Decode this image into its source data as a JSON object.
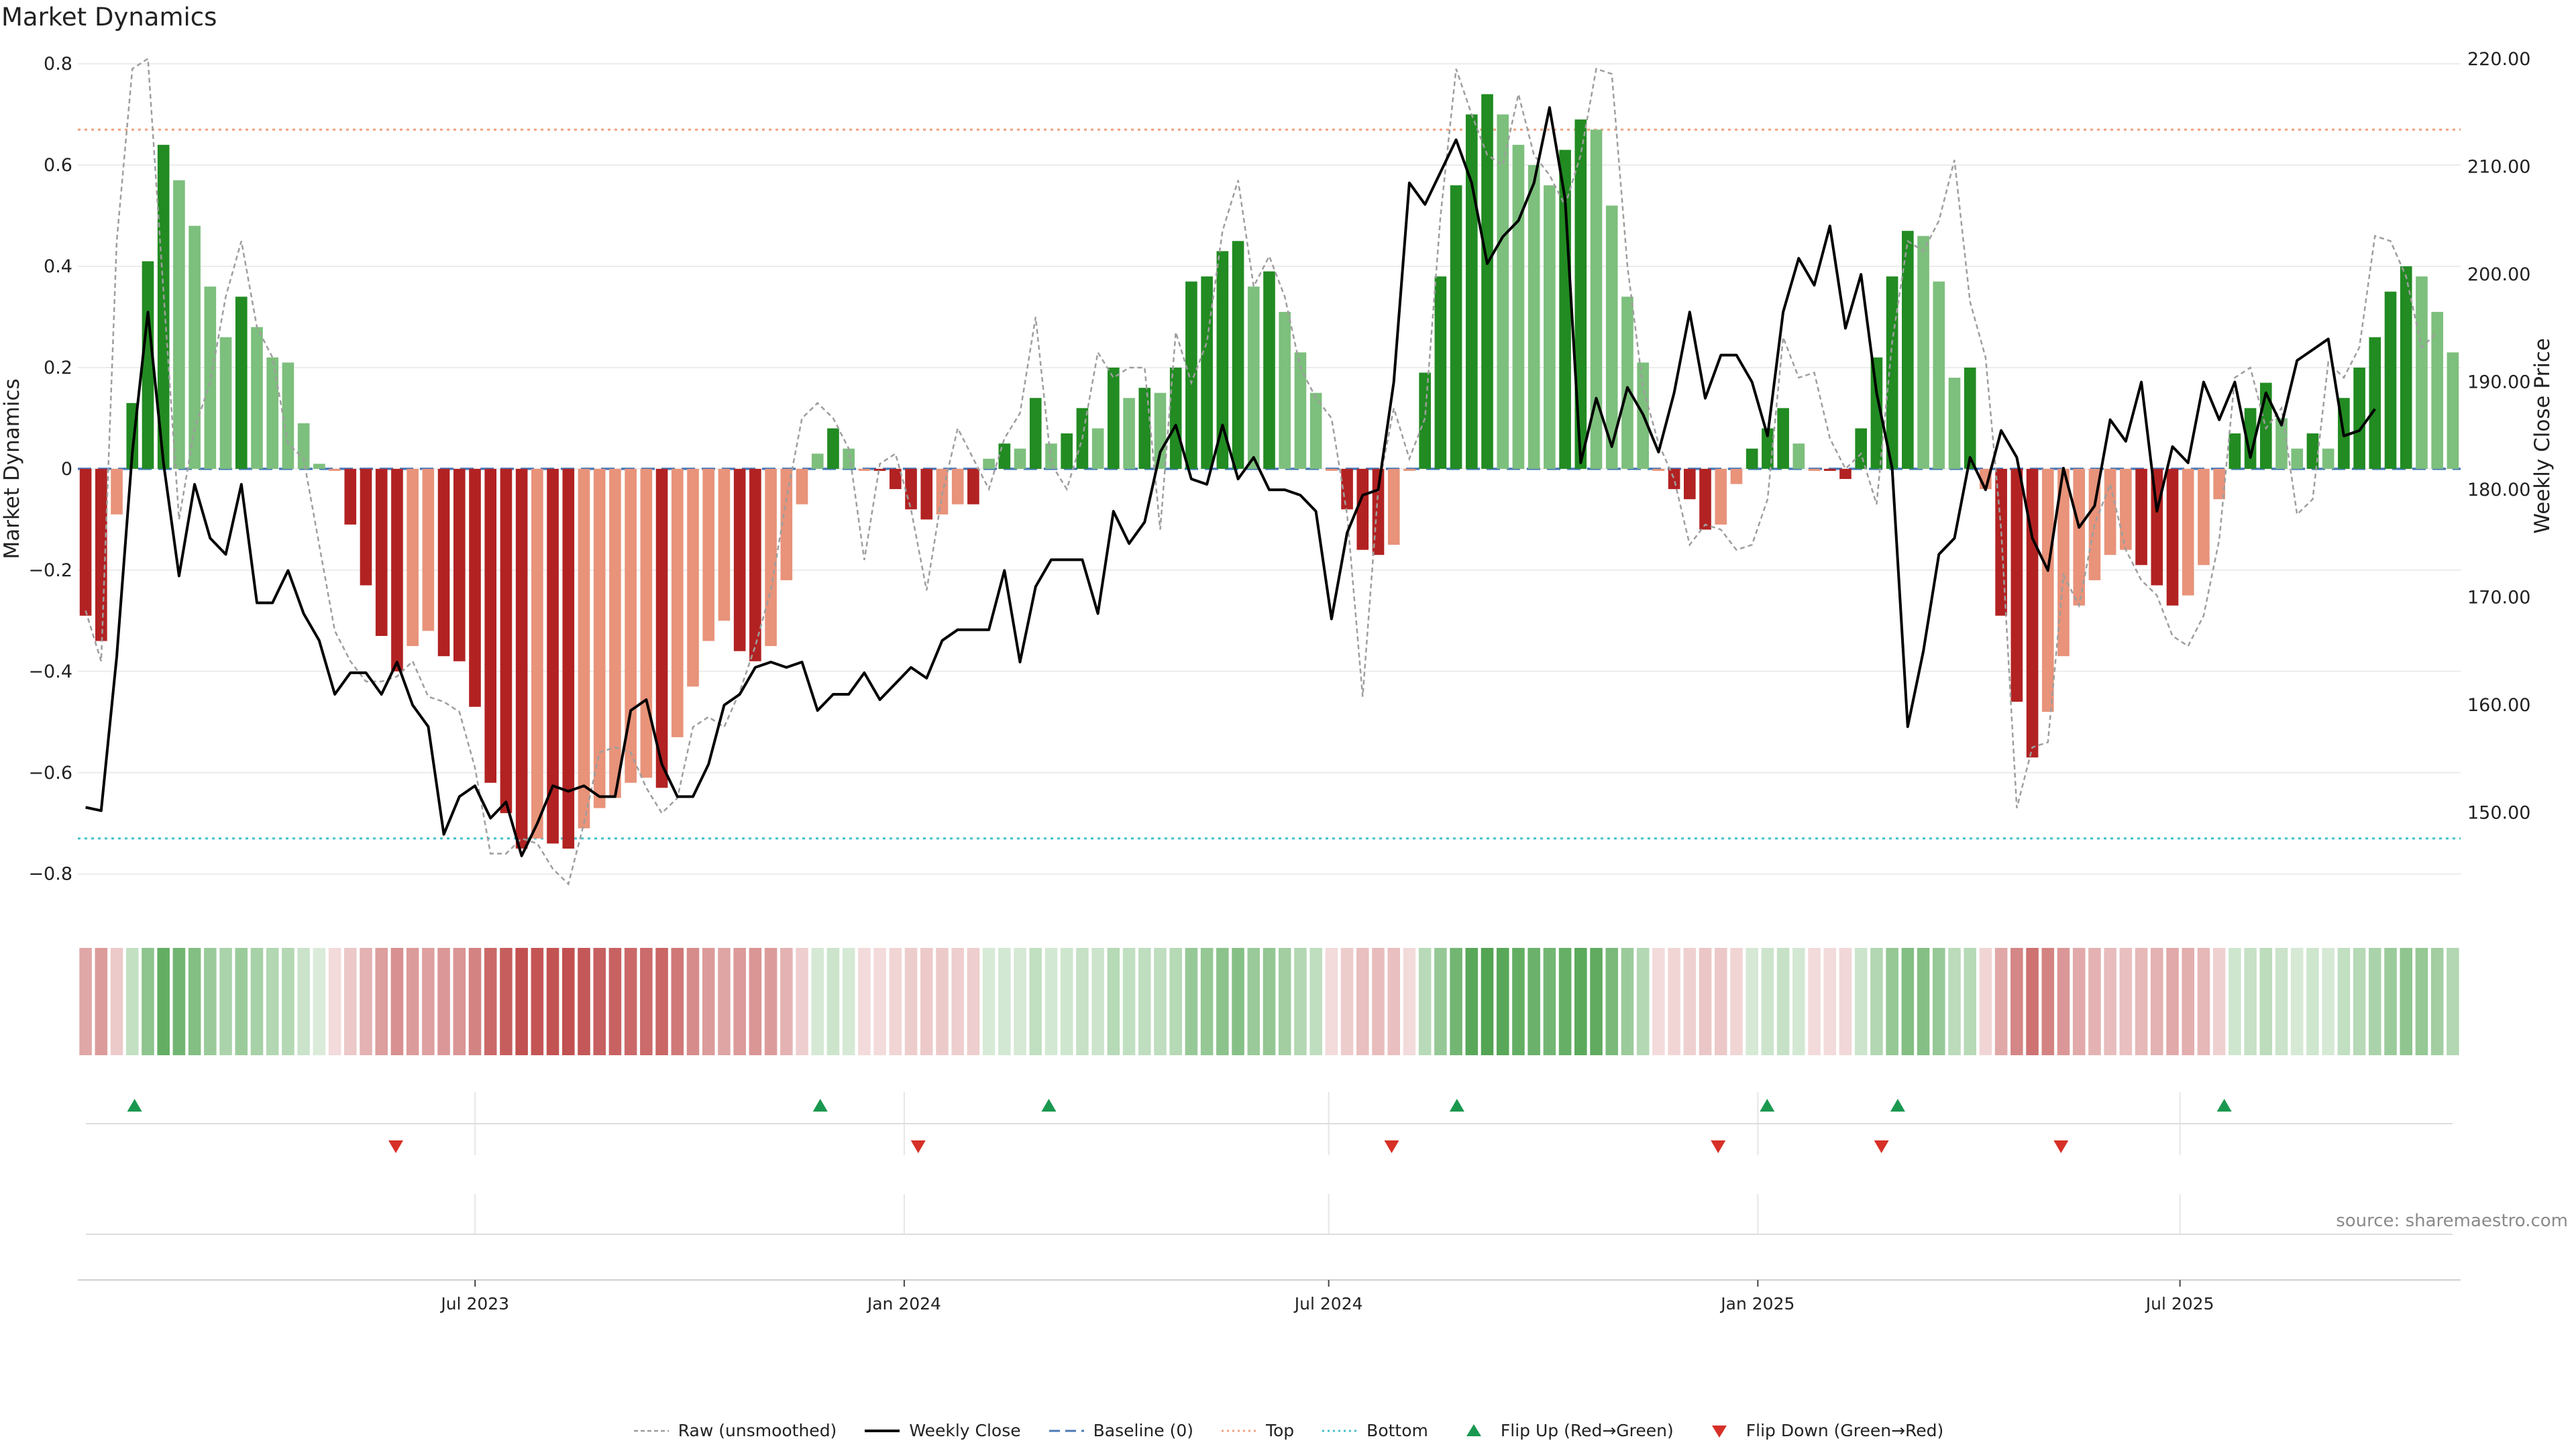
{
  "title": "Market Dynamics",
  "source_text": "source: sharemaestro.com",
  "colors": {
    "strong_green": "#228b22",
    "light_green": "#7dbf7d",
    "strong_red": "#b22222",
    "light_red": "#e8937a",
    "close_line": "#000000",
    "raw_line": "#9e9e9e",
    "baseline": "#4a7ab7",
    "top_line": "#f0a07d",
    "bottom_line": "#40c0c8",
    "flip_up": "#1a9850",
    "flip_down": "#d73027"
  },
  "legend": [
    {
      "label": "Raw (unsmoothed)",
      "kind": "raw"
    },
    {
      "label": "Weekly Close",
      "kind": "close"
    },
    {
      "label": "Baseline (0)",
      "kind": "baseline"
    },
    {
      "label": "Top",
      "kind": "top"
    },
    {
      "label": "Bottom",
      "kind": "bottom"
    },
    {
      "label": "Flip Up (Red→Green)",
      "kind": "up"
    },
    {
      "label": "Flip Down (Green→Red)",
      "kind": "down"
    }
  ],
  "chart_data": {
    "type": "bar",
    "title": "Market Dynamics",
    "ylabel": "Market Dynamics",
    "y2label": "Weekly Close Price",
    "ylim": [
      -0.86,
      0.82
    ],
    "y2lim": [
      141.5,
      220.5
    ],
    "yticks": [
      -0.8,
      -0.6,
      -0.4,
      -0.2,
      0,
      0.2,
      0.4,
      0.6,
      0.8
    ],
    "yticklabels": [
      "−0.8",
      "−0.6",
      "−0.4",
      "−0.2",
      "0",
      "0.2",
      "0.4",
      "0.6",
      "0.8"
    ],
    "y2ticks": [
      150,
      160,
      170,
      180,
      190,
      200,
      210,
      220
    ],
    "y2ticklabels": [
      "150.00",
      "160.00",
      "170.00",
      "180.00",
      "190.00",
      "200.00",
      "210.00",
      "220.00"
    ],
    "x_start": "2023-01-15",
    "x_end": "2025-10-26",
    "xticks": [
      "2023-07-01",
      "2024-01-01",
      "2024-07-01",
      "2025-01-01",
      "2025-07-01"
    ],
    "xticklabels": [
      "Jul 2023",
      "Jan 2024",
      "Jul 2024",
      "Jan 2025",
      "Jul 2025"
    ],
    "top_level": 0.67,
    "bottom_level": -0.73,
    "baseline": 0,
    "grid": true,
    "legend_position": "bottom-center",
    "dynamics": [
      -0.29,
      -0.34,
      -0.09,
      0.13,
      0.41,
      0.64,
      0.57,
      0.48,
      0.36,
      0.26,
      0.34,
      0.28,
      0.22,
      0.21,
      0.09,
      0.01,
      -0.004,
      -0.11,
      -0.23,
      -0.33,
      -0.4,
      -0.35,
      -0.32,
      -0.37,
      -0.38,
      -0.47,
      -0.62,
      -0.68,
      -0.75,
      -0.73,
      -0.74,
      -0.75,
      -0.71,
      -0.67,
      -0.65,
      -0.62,
      -0.61,
      -0.63,
      -0.53,
      -0.43,
      -0.34,
      -0.3,
      -0.36,
      -0.38,
      -0.35,
      -0.22,
      -0.07,
      0.03,
      0.08,
      0.04,
      -0.004,
      -0.004,
      -0.04,
      -0.08,
      -0.1,
      -0.09,
      -0.07,
      -0.07,
      0.02,
      0.05,
      0.04,
      0.14,
      0.05,
      0.07,
      0.12,
      0.08,
      0.2,
      0.14,
      0.16,
      0.15,
      0.2,
      0.37,
      0.38,
      0.43,
      0.45,
      0.36,
      0.39,
      0.31,
      0.23,
      0.15,
      -0.004,
      -0.08,
      -0.16,
      -0.17,
      -0.15,
      -0.004,
      0.19,
      0.38,
      0.56,
      0.7,
      0.74,
      0.7,
      0.64,
      0.6,
      0.56,
      0.63,
      0.69,
      0.67,
      0.52,
      0.34,
      0.21,
      -0.004,
      -0.04,
      -0.06,
      -0.12,
      -0.11,
      -0.03,
      0.04,
      0.08,
      0.12,
      0.05,
      -0.004,
      -0.004,
      -0.02,
      0.08,
      0.22,
      0.38,
      0.47,
      0.46,
      0.37,
      0.18,
      0.2,
      -0.04,
      -0.29,
      -0.46,
      -0.57,
      -0.48,
      -0.37,
      -0.27,
      -0.22,
      -0.17,
      -0.16,
      -0.19,
      -0.23,
      -0.27,
      -0.25,
      -0.19,
      -0.06,
      0.07,
      0.12,
      0.17,
      0.1,
      0.04,
      0.07,
      0.04,
      0.14,
      0.2,
      0.26,
      0.35,
      0.4,
      0.38,
      0.31,
      0.23
    ],
    "raw": [
      -0.28,
      -0.38,
      0.45,
      0.79,
      0.81,
      0.35,
      -0.1,
      0.08,
      0.17,
      0.34,
      0.45,
      0.28,
      0.22,
      0.05,
      0.02,
      -0.15,
      -0.32,
      -0.38,
      -0.42,
      -0.42,
      -0.41,
      -0.38,
      -0.45,
      -0.46,
      -0.48,
      -0.59,
      -0.76,
      -0.76,
      -0.73,
      -0.74,
      -0.79,
      -0.82,
      -0.7,
      -0.56,
      -0.55,
      -0.56,
      -0.63,
      -0.68,
      -0.65,
      -0.51,
      -0.49,
      -0.51,
      -0.44,
      -0.35,
      -0.24,
      -0.06,
      0.1,
      0.13,
      0.1,
      0.04,
      -0.18,
      0.01,
      0.03,
      -0.08,
      -0.24,
      -0.05,
      0.08,
      0.02,
      -0.04,
      0.06,
      0.11,
      0.3,
      0.01,
      -0.04,
      0.06,
      0.23,
      0.18,
      0.2,
      0.2,
      -0.12,
      0.27,
      0.17,
      0.25,
      0.47,
      0.57,
      0.36,
      0.42,
      0.34,
      0.2,
      0.14,
      0.1,
      -0.09,
      -0.45,
      -0.04,
      0.12,
      0.02,
      0.1,
      0.5,
      0.79,
      0.7,
      0.62,
      0.6,
      0.74,
      0.62,
      0.58,
      0.52,
      0.62,
      0.79,
      0.78,
      0.4,
      0.16,
      0.05,
      -0.02,
      -0.15,
      -0.11,
      -0.12,
      -0.16,
      -0.15,
      -0.06,
      0.26,
      0.18,
      0.19,
      0.06,
      0.0,
      0.03,
      -0.07,
      0.25,
      0.45,
      0.43,
      0.49,
      0.61,
      0.33,
      0.22,
      -0.12,
      -0.67,
      -0.55,
      -0.54,
      -0.21,
      -0.27,
      -0.11,
      -0.03,
      -0.16,
      -0.22,
      -0.25,
      -0.33,
      -0.35,
      -0.29,
      -0.14,
      0.18,
      0.2,
      0.08,
      0.12,
      -0.09,
      -0.06,
      0.21,
      0.18,
      0.24,
      0.46,
      0.45,
      0.38,
      0.24,
      0.27
    ],
    "close": [
      150.5,
      150.2,
      164.5,
      183.5,
      196.5,
      182.5,
      172.0,
      180.5,
      175.5,
      174.0,
      180.5,
      169.5,
      169.5,
      172.5,
      168.5,
      166.0,
      161.0,
      163.0,
      163.0,
      161.0,
      164.0,
      160.0,
      158.0,
      148.0,
      151.5,
      152.5,
      149.5,
      151.0,
      146.0,
      149.0,
      152.5,
      152.0,
      152.5,
      151.5,
      151.5,
      159.5,
      160.5,
      154.5,
      151.5,
      151.5,
      154.5,
      160.0,
      161.0,
      163.5,
      164.0,
      163.5,
      164.0,
      159.5,
      161.0,
      161.0,
      163.0,
      160.5,
      162.0,
      163.5,
      162.5,
      166.0,
      167.0,
      167.0,
      167.0,
      172.5,
      164.0,
      171.0,
      173.5,
      173.5,
      173.5,
      168.5,
      178.0,
      175.0,
      177.0,
      183.5,
      186.0,
      181.0,
      180.5,
      186.0,
      181.0,
      183.0,
      180.0,
      180.0,
      179.5,
      178.0,
      168.0,
      176.0,
      179.5,
      180.0,
      190.0,
      208.5,
      206.5,
      209.5,
      212.5,
      208.5,
      201.0,
      203.5,
      205.0,
      208.5,
      215.5,
      207.0,
      182.5,
      188.5,
      184.0,
      189.5,
      187.0,
      183.5,
      189.0,
      196.5,
      188.5,
      192.5,
      192.5,
      190.0,
      185.0,
      196.5,
      201.5,
      199.0,
      204.5,
      195.0,
      200.0,
      189.0,
      182.0,
      158.0,
      165.0,
      174.0,
      175.5,
      183.0,
      180.0,
      185.5,
      183.0,
      175.5,
      172.5,
      182.0,
      176.5,
      178.5,
      186.5,
      184.5,
      190.0,
      178.0,
      184.0,
      182.5,
      190.0,
      186.5,
      190.0,
      183.0,
      189.0,
      186.0,
      192.0,
      193.0,
      194.0,
      185.0,
      185.5,
      187.5
    ],
    "flip_up": [
      "2023-02-05",
      "2023-11-26",
      "2024-03-03",
      "2024-08-25",
      "2025-01-05",
      "2025-03-02",
      "2025-07-20"
    ],
    "flip_down": [
      "2023-05-28",
      "2024-01-07",
      "2024-07-28",
      "2024-12-15",
      "2025-02-23",
      "2025-05-11"
    ]
  }
}
